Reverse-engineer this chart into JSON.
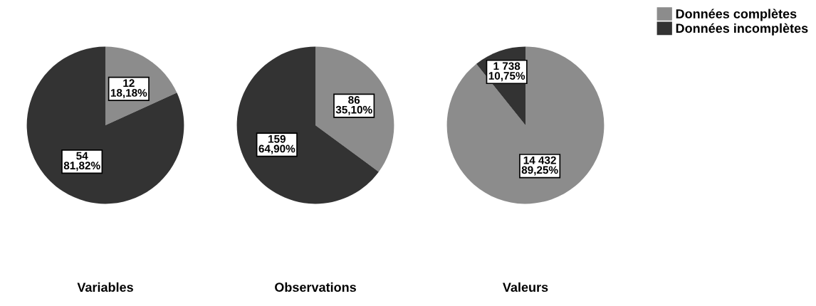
{
  "chart_data": [
    {
      "type": "pie",
      "title": "Variables",
      "categories": [
        "Données complètes",
        "Données incomplètes"
      ],
      "values": [
        12,
        54
      ],
      "colors": [
        "#8c8c8c",
        "#333333"
      ],
      "value_labels": [
        "12\n18,18%",
        "54\n81,82%"
      ],
      "legend": "top right"
    },
    {
      "type": "pie",
      "title": "Observations",
      "categories": [
        null,
        null
      ],
      "values": [
        86,
        159
      ],
      "colors": [
        "#8c8c8c",
        "#333333"
      ],
      "value_labels": [
        "86\n35,10%",
        "159\n64,90%"
      ]
    },
    {
      "type": "pie",
      "title": "Valeurs",
      "categories": [
        null,
        null
      ],
      "values": [
        14432,
        1738
      ],
      "colors": [
        "#8c8c8c",
        "#333333"
      ],
      "value_labels": [
        "14 432\n89,25%",
        "1 738\n10,75%"
      ]
    }
  ]
}
